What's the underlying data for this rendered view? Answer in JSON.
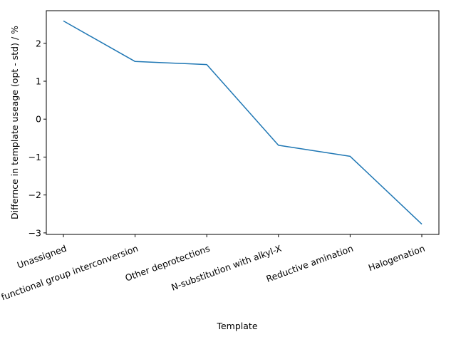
{
  "chart_data": {
    "type": "line",
    "xlabel": "Template",
    "ylabel": "Differnce in template useage (opt - std) / %",
    "categories": [
      "Unassigned",
      "Other functional group interconversion",
      "Other deprotections",
      "N-substitution with alkyl-X",
      "Reductive amination",
      "Halogenation"
    ],
    "series": [
      {
        "values": [
          2.59,
          1.52,
          1.44,
          -0.69,
          -0.98,
          -2.77
        ]
      }
    ],
    "yticks": [
      -3,
      -2,
      -1,
      0,
      1,
      2
    ],
    "ylim": [
      -3.04,
      2.86
    ],
    "x_tick_rotation_deg": 20,
    "grid": false,
    "legend": "none",
    "line_color": "#1f77b4"
  }
}
